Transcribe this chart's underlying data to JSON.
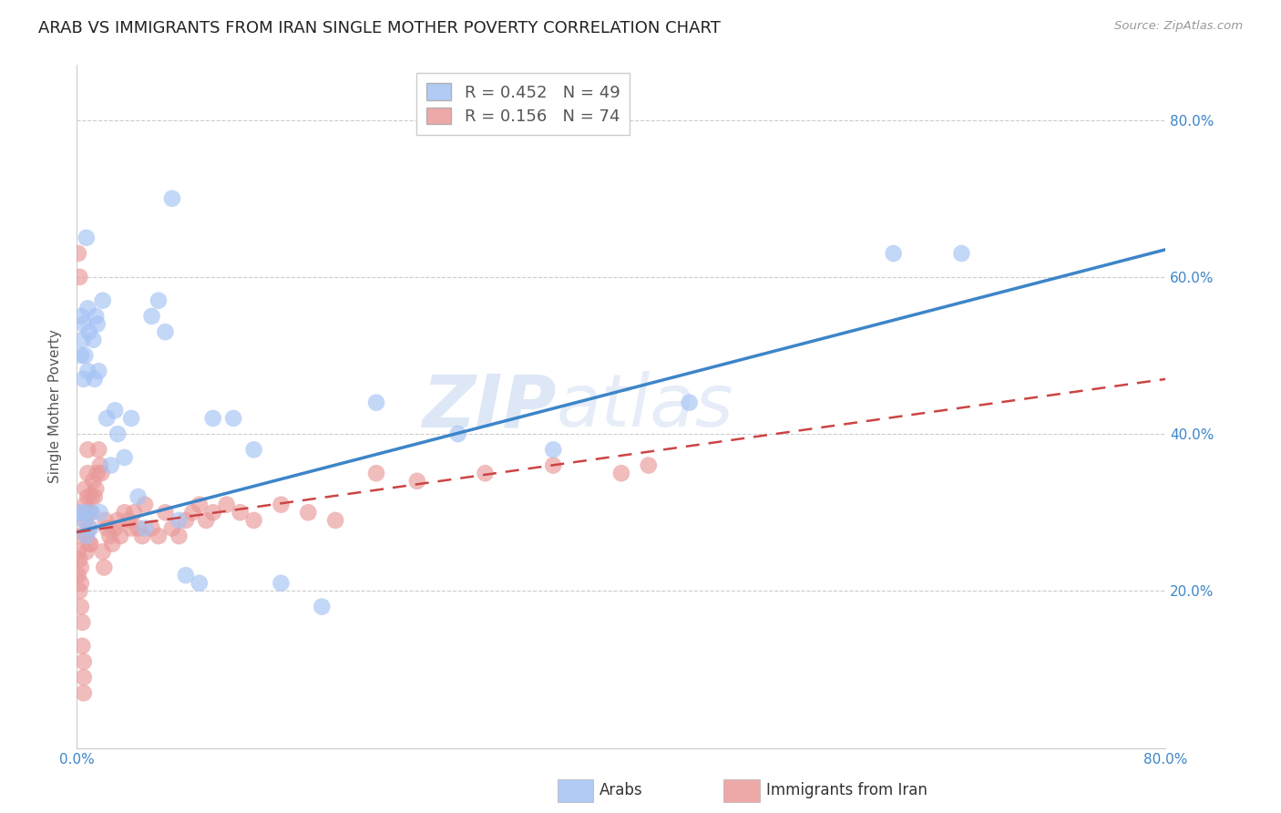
{
  "title": "ARAB VS IMMIGRANTS FROM IRAN SINGLE MOTHER POVERTY CORRELATION CHART",
  "source": "Source: ZipAtlas.com",
  "ylabel": "Single Mother Poverty",
  "xlim": [
    0.0,
    0.8
  ],
  "ylim": [
    0.0,
    0.87
  ],
  "yticks": [
    0.0,
    0.2,
    0.4,
    0.6,
    0.8
  ],
  "xticks": [
    0.0,
    0.1,
    0.2,
    0.3,
    0.4,
    0.5,
    0.6,
    0.7,
    0.8
  ],
  "arab_color": "#a4c2f4",
  "iran_color": "#ea9999",
  "arab_R": 0.452,
  "arab_N": 49,
  "iran_R": 0.156,
  "iran_N": 74,
  "watermark": "ZIPatlas",
  "legend_label_arab": "Arabs",
  "legend_label_iran": "Immigrants from Iran",
  "arab_trend_start": 0.275,
  "arab_trend_end": 0.635,
  "iran_trend_start": 0.275,
  "iran_trend_end": 0.47,
  "arab_x": [
    0.002,
    0.003,
    0.003,
    0.004,
    0.005,
    0.005,
    0.006,
    0.006,
    0.007,
    0.008,
    0.008,
    0.009,
    0.01,
    0.011,
    0.012,
    0.013,
    0.014,
    0.015,
    0.016,
    0.017,
    0.019,
    0.022,
    0.025,
    0.028,
    0.03,
    0.035,
    0.04,
    0.045,
    0.05,
    0.055,
    0.06,
    0.065,
    0.07,
    0.075,
    0.08,
    0.09,
    0.1,
    0.115,
    0.13,
    0.15,
    0.18,
    0.22,
    0.28,
    0.35,
    0.45,
    0.6,
    0.65,
    0.005,
    0.007
  ],
  "arab_y": [
    0.3,
    0.5,
    0.55,
    0.52,
    0.47,
    0.54,
    0.3,
    0.5,
    0.65,
    0.56,
    0.48,
    0.53,
    0.28,
    0.3,
    0.52,
    0.47,
    0.55,
    0.54,
    0.48,
    0.3,
    0.57,
    0.42,
    0.36,
    0.43,
    0.4,
    0.37,
    0.42,
    0.32,
    0.28,
    0.55,
    0.57,
    0.53,
    0.7,
    0.29,
    0.22,
    0.21,
    0.42,
    0.42,
    0.38,
    0.21,
    0.18,
    0.44,
    0.4,
    0.38,
    0.44,
    0.63,
    0.63,
    0.29,
    0.27
  ],
  "iran_x": [
    0.001,
    0.001,
    0.001,
    0.002,
    0.002,
    0.003,
    0.003,
    0.003,
    0.004,
    0.004,
    0.005,
    0.005,
    0.005,
    0.006,
    0.006,
    0.006,
    0.007,
    0.007,
    0.007,
    0.008,
    0.008,
    0.008,
    0.009,
    0.009,
    0.01,
    0.01,
    0.011,
    0.012,
    0.013,
    0.014,
    0.015,
    0.016,
    0.017,
    0.018,
    0.019,
    0.02,
    0.021,
    0.022,
    0.024,
    0.026,
    0.028,
    0.03,
    0.032,
    0.035,
    0.038,
    0.04,
    0.042,
    0.045,
    0.048,
    0.05,
    0.055,
    0.06,
    0.065,
    0.07,
    0.075,
    0.08,
    0.085,
    0.09,
    0.095,
    0.1,
    0.11,
    0.12,
    0.13,
    0.15,
    0.17,
    0.19,
    0.22,
    0.25,
    0.3,
    0.35,
    0.4,
    0.42,
    0.001,
    0.002
  ],
  "iran_y": [
    0.27,
    0.25,
    0.22,
    0.24,
    0.2,
    0.23,
    0.21,
    0.18,
    0.16,
    0.13,
    0.11,
    0.09,
    0.07,
    0.29,
    0.31,
    0.33,
    0.3,
    0.27,
    0.25,
    0.35,
    0.38,
    0.32,
    0.28,
    0.26,
    0.3,
    0.26,
    0.32,
    0.34,
    0.32,
    0.33,
    0.35,
    0.38,
    0.36,
    0.35,
    0.25,
    0.23,
    0.29,
    0.28,
    0.27,
    0.26,
    0.28,
    0.29,
    0.27,
    0.3,
    0.29,
    0.28,
    0.3,
    0.28,
    0.27,
    0.31,
    0.28,
    0.27,
    0.3,
    0.28,
    0.27,
    0.29,
    0.3,
    0.31,
    0.29,
    0.3,
    0.31,
    0.3,
    0.29,
    0.31,
    0.3,
    0.29,
    0.35,
    0.34,
    0.35,
    0.36,
    0.35,
    0.36,
    0.63,
    0.6
  ]
}
